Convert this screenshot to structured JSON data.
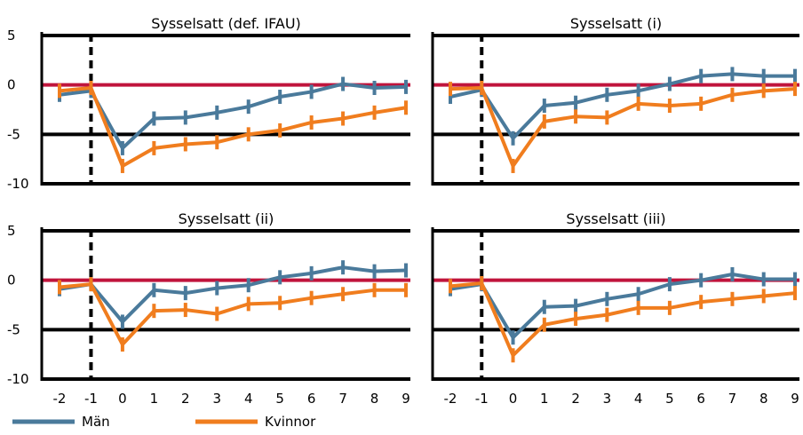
{
  "chart_data": {
    "type": "line",
    "x": [
      -2,
      -1,
      0,
      1,
      2,
      3,
      4,
      5,
      6,
      7,
      8,
      9
    ],
    "ylim": [
      -10,
      5
    ],
    "yticks": [
      5,
      0,
      -5,
      -10
    ],
    "reference_line": {
      "y": 0,
      "color": "#C0143C"
    },
    "event_line": {
      "x": -1,
      "style": "dashed"
    },
    "legend": {
      "placement": "bottom-left"
    },
    "series_styles": [
      {
        "name": "Män",
        "color": "#4A7A9B"
      },
      {
        "name": "Kvinnor",
        "color": "#F07D1E"
      }
    ],
    "panels": [
      {
        "title": "Sysselsatt (def. IFAU)",
        "series": [
          {
            "name": "Män",
            "values": [
              -1.0,
              -0.6,
              -6.4,
              -3.4,
              -3.3,
              -2.8,
              -2.2,
              -1.2,
              -0.7,
              0.1,
              -0.3,
              -0.2
            ]
          },
          {
            "name": "Kvinnor",
            "values": [
              -0.6,
              -0.3,
              -8.2,
              -6.4,
              -6.0,
              -5.8,
              -5.0,
              -4.6,
              -3.8,
              -3.4,
              -2.8,
              -2.3
            ]
          }
        ]
      },
      {
        "title": "Sysselsatt (i)",
        "series": [
          {
            "name": "Män",
            "values": [
              -1.2,
              -0.5,
              -5.4,
              -2.1,
              -1.8,
              -1.0,
              -0.6,
              0.1,
              0.9,
              1.1,
              0.9,
              0.9
            ]
          },
          {
            "name": "Kvinnor",
            "values": [
              -0.4,
              -0.3,
              -8.2,
              -3.7,
              -3.2,
              -3.3,
              -1.9,
              -2.1,
              -1.9,
              -1.0,
              -0.6,
              -0.4
            ]
          }
        ]
      },
      {
        "title": "Sysselsatt (ii)",
        "series": [
          {
            "name": "Män",
            "values": [
              -0.9,
              -0.4,
              -4.2,
              -1.0,
              -1.3,
              -0.8,
              -0.5,
              0.3,
              0.7,
              1.3,
              0.9,
              1.0
            ]
          },
          {
            "name": "Kvinnor",
            "values": [
              -0.7,
              -0.4,
              -6.5,
              -3.1,
              -3.0,
              -3.4,
              -2.4,
              -2.3,
              -1.8,
              -1.4,
              -1.0,
              -1.0
            ]
          }
        ]
      },
      {
        "title": "Sysselsatt (iii)",
        "series": [
          {
            "name": "Män",
            "values": [
              -0.9,
              -0.4,
              -5.8,
              -2.7,
              -2.6,
              -1.9,
              -1.4,
              -0.4,
              0.0,
              0.6,
              0.1,
              0.1
            ]
          },
          {
            "name": "Kvinnor",
            "values": [
              -0.6,
              -0.3,
              -7.6,
              -4.5,
              -3.9,
              -3.5,
              -2.8,
              -2.8,
              -2.2,
              -1.9,
              -1.6,
              -1.3
            ]
          }
        ]
      }
    ]
  }
}
